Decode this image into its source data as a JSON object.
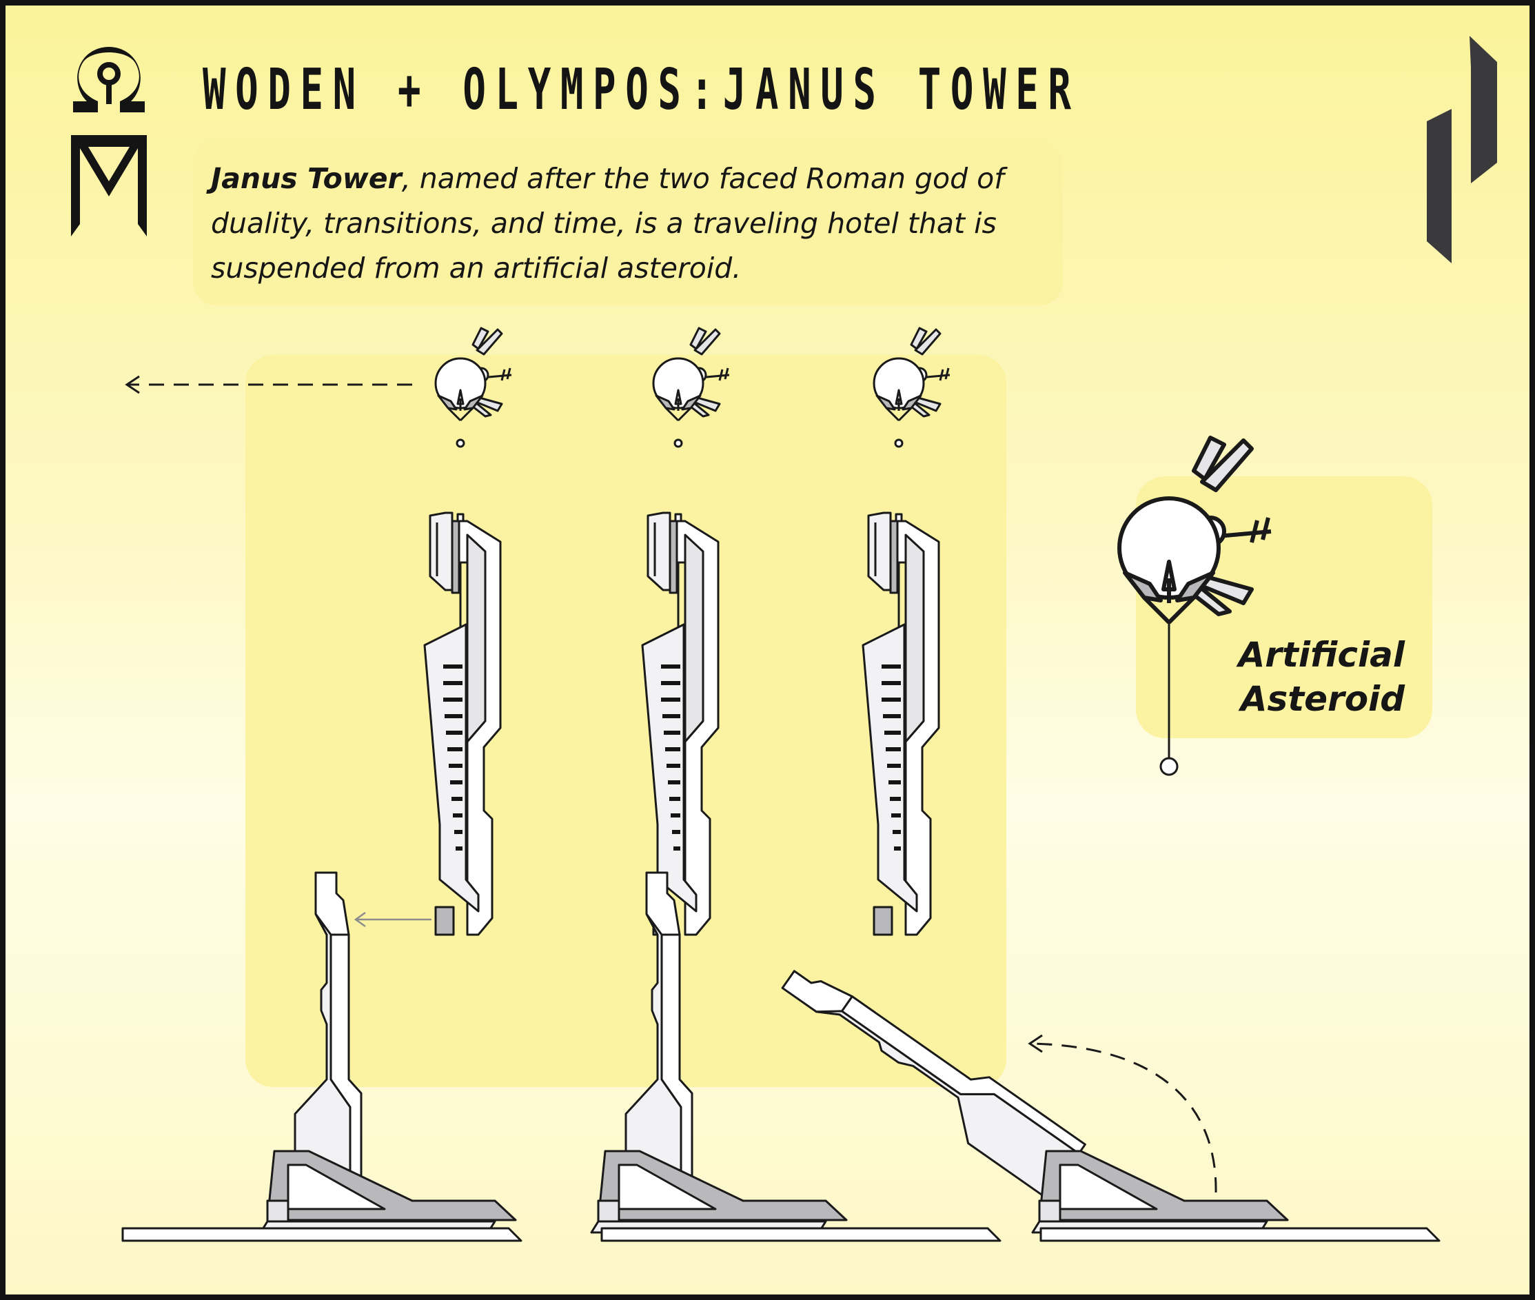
{
  "title": "WODEN + OLYMPOS:JANUS TOWER",
  "description": {
    "name": "Janus Tower",
    "text": ", named after the two faced Roman god of duality, transitions, and time, is a traveling hotel that is suspended from an artificial asteroid."
  },
  "asteroid_label": "Artificial Asteroid",
  "colors": {
    "background": "#fdf8c4",
    "panel": "#fbf3a2",
    "ink": "#161616",
    "structure_light": "#f2f2f4",
    "structure_mid": "#e6e6e8",
    "structure_dark": "#b9b9bb",
    "logo_dark": "#3a3a3d"
  },
  "icons": {
    "brand_logo": "omega-m-logo",
    "corner_logo": "angular-p-logo",
    "travel_arrow": "dashed-arrow-left-icon",
    "dock_arrow": "arrow-left-icon",
    "rotate_arrow": "dashed-curved-arrow-icon"
  }
}
